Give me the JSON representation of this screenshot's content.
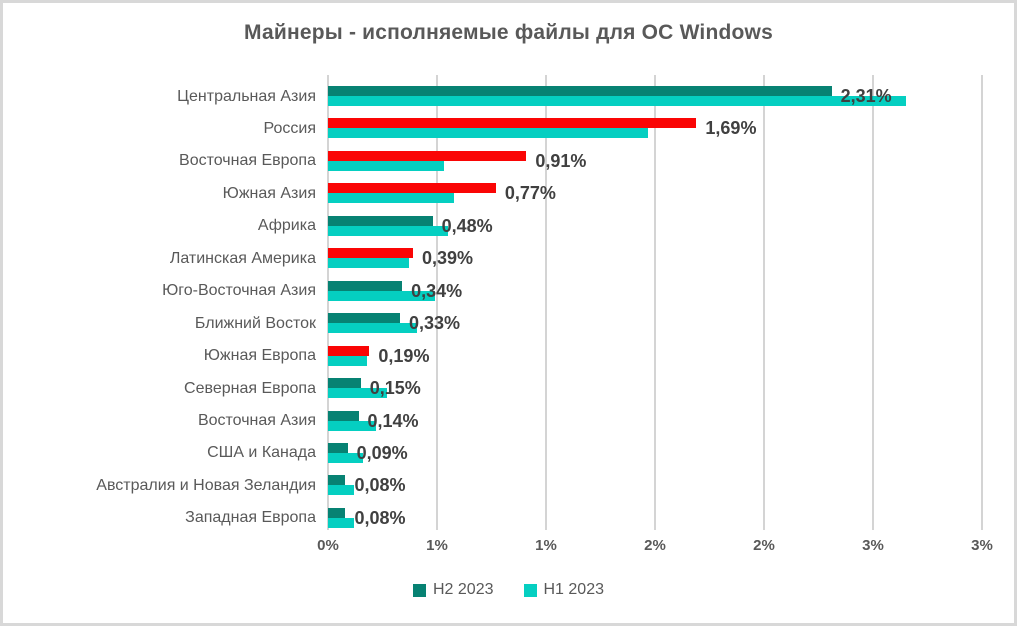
{
  "chart_data": {
    "type": "bar",
    "orientation": "horizontal",
    "title": "Майнеры - исполняемые файлы для ОС Windows",
    "categories": [
      "Центральная Азия",
      "Россия",
      "Восточная Европа",
      "Южная Азия",
      "Африка",
      "Латинская Америка",
      "Юго-Восточная Азия",
      "Ближний Восток",
      "Южная Европа",
      "Северная Европа",
      "Восточная Азия",
      "США и Канада",
      "Австралия и Новая Зеландия",
      "Западная Европа"
    ],
    "series": [
      {
        "name": "H2 2023",
        "values": [
          2.31,
          1.69,
          0.91,
          0.77,
          0.48,
          0.39,
          0.34,
          0.33,
          0.19,
          0.15,
          0.14,
          0.09,
          0.08,
          0.08
        ],
        "color": "#078273",
        "highlight_color": "#FA0505",
        "highlighted": [
          false,
          true,
          true,
          true,
          false,
          true,
          false,
          false,
          true,
          false,
          false,
          false,
          false,
          false
        ]
      },
      {
        "name": "H1 2023",
        "values": [
          2.65,
          1.47,
          0.53,
          0.58,
          0.55,
          0.37,
          0.49,
          0.41,
          0.18,
          0.27,
          0.22,
          0.16,
          0.12,
          0.12
        ],
        "color": "#05CFC1"
      }
    ],
    "data_labels": [
      "2,31%",
      "1,69%",
      "0,91%",
      "0,77%",
      "0,48%",
      "0,39%",
      "0,34%",
      "0,33%",
      "0,19%",
      "0,15%",
      "0,14%",
      "0,09%",
      "0,08%",
      "0,08%"
    ],
    "data_label_series": "H2 2023",
    "xlim": [
      0,
      3
    ],
    "x_tick_values": [
      0,
      0.5,
      1,
      1.5,
      2,
      2.5,
      3
    ],
    "x_tick_labels": [
      "0%",
      "1%",
      "1%",
      "2%",
      "2%",
      "3%",
      "3%"
    ],
    "grid": "vertical",
    "legend_position": "bottom",
    "legend_items": [
      {
        "label": "H2 2023",
        "color": "#078273"
      },
      {
        "label": "H1 2023",
        "color": "#05CFC1"
      }
    ]
  },
  "colors": {
    "h2_teal": "#078273",
    "h1_cyan": "#05CFC1",
    "highlight_red": "#FA0505",
    "gridline": "#D4D4D4",
    "title_text": "#595959",
    "axis_text": "#595959",
    "data_label_text": "#404040",
    "frame_border": "#D8D8D8",
    "background": "#FFFFFF"
  }
}
